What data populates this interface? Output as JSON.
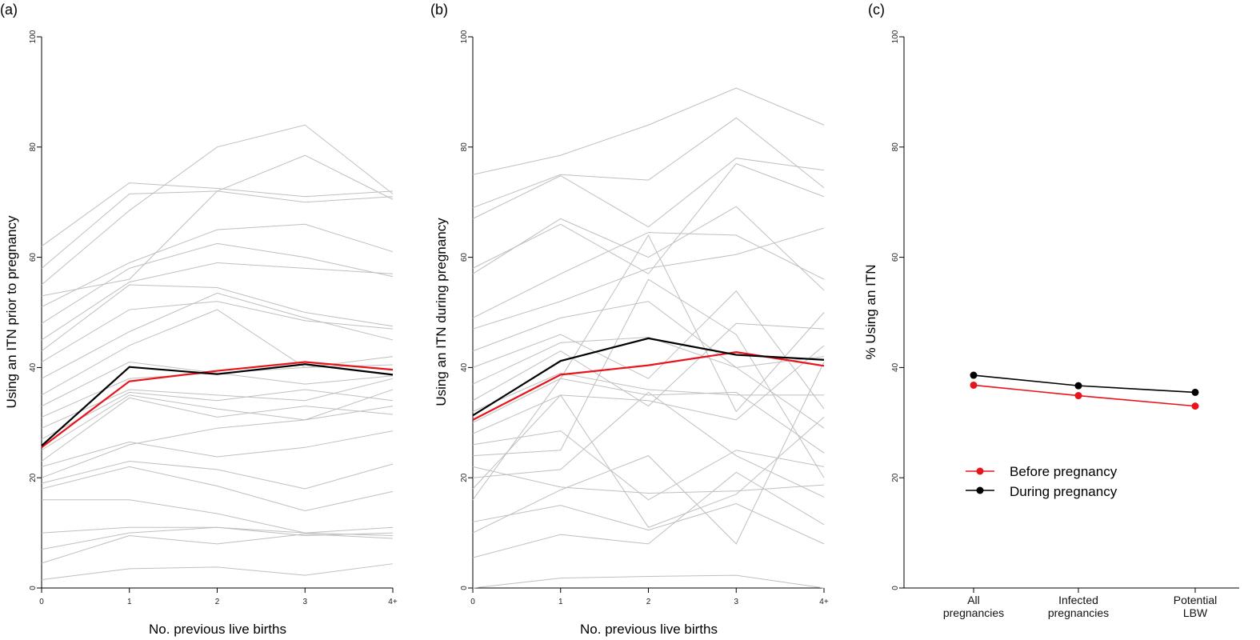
{
  "chart_data": [
    {
      "panel_label": "(a)",
      "type": "line",
      "xlabel": "No. previous live births",
      "ylabel": "Using an ITN prior to pregnancy",
      "x": [
        "0",
        "1",
        "2",
        "3",
        "4+"
      ],
      "ylim": [
        0,
        100
      ],
      "yticks": [
        "0",
        "20",
        "40",
        "60",
        "80",
        "100"
      ],
      "grid": false,
      "background_colors": {
        "background": "#bfbfbf"
      },
      "background_series": [
        [
          62,
          73.5,
          72.5,
          71,
          72
        ],
        [
          58,
          71.5,
          72,
          70,
          71
        ],
        [
          55,
          68.5,
          80,
          84,
          71.5
        ],
        [
          53,
          56,
          72,
          78.5,
          70.5
        ],
        [
          51,
          59,
          65,
          66,
          61
        ],
        [
          48,
          58,
          62.5,
          60,
          56.5
        ],
        [
          45,
          55.5,
          59,
          58,
          57
        ],
        [
          43,
          55,
          54.5,
          50,
          47.5
        ],
        [
          41,
          50.5,
          52,
          48.5,
          47
        ],
        [
          38,
          46.5,
          53.5,
          49,
          45
        ],
        [
          35,
          44,
          50.5,
          40,
          42
        ],
        [
          33,
          41,
          39,
          40,
          40.5
        ],
        [
          31,
          38,
          39,
          37,
          38.5
        ],
        [
          29,
          36,
          35,
          34,
          38
        ],
        [
          27,
          35.5,
          34,
          36,
          34
        ],
        [
          25,
          35,
          32.5,
          30.5,
          36
        ],
        [
          23,
          34.5,
          31,
          33,
          31.5
        ],
        [
          22,
          26.5,
          23.8,
          25.5,
          28.5
        ],
        [
          20,
          26,
          29,
          30.5,
          33
        ],
        [
          19,
          23,
          21.5,
          18,
          22.5
        ],
        [
          18,
          22,
          18.5,
          14,
          17.5
        ],
        [
          16,
          16,
          13.5,
          10,
          11
        ],
        [
          10,
          11,
          11,
          9.5,
          10
        ],
        [
          7,
          10,
          11,
          10,
          9.5
        ],
        [
          4.5,
          9.5,
          8,
          9.8,
          9
        ],
        [
          1.5,
          3.5,
          3.8,
          2.3,
          4.4
        ]
      ],
      "series": [
        {
          "color": "#e8141b",
          "values": [
            25.5,
            37.5,
            39.4,
            41,
            39.6
          ]
        },
        {
          "color": "#000000",
          "values": [
            25.8,
            40.1,
            38.8,
            40.6,
            38.7
          ]
        }
      ]
    },
    {
      "panel_label": "(b)",
      "type": "line",
      "xlabel": "No. previous live births",
      "ylabel": "Using an ITN during pregnancy",
      "x": [
        "0",
        "1",
        "2",
        "3",
        "4+"
      ],
      "ylim": [
        0,
        100
      ],
      "yticks": [
        "0",
        "20",
        "40",
        "60",
        "80",
        "100"
      ],
      "grid": false,
      "background_colors": {
        "background": "#bfbfbf"
      },
      "background_series": [
        [
          75,
          78.5,
          84,
          90.7,
          84
        ],
        [
          69,
          75,
          74,
          85.3,
          72.6
        ],
        [
          67,
          74.8,
          65.5,
          78,
          75.8
        ],
        [
          58,
          66,
          57,
          77,
          71
        ],
        [
          57,
          67,
          60,
          69.2,
          54
        ],
        [
          49,
          57,
          64.5,
          64,
          56
        ],
        [
          47,
          52,
          58,
          60.5,
          65.3
        ],
        [
          43,
          49,
          52,
          40,
          42
        ],
        [
          40,
          46,
          38,
          53.9,
          32.5
        ],
        [
          37,
          44.5,
          45.5,
          40,
          29
        ],
        [
          34,
          43,
          33,
          48,
          47
        ],
        [
          32,
          39,
          36,
          35,
          35
        ],
        [
          30,
          38,
          35,
          35.5,
          24.5
        ],
        [
          28,
          35,
          34,
          30.5,
          44
        ],
        [
          26,
          28.5,
          16,
          25,
          22
        ],
        [
          24,
          25,
          56,
          46,
          20
        ],
        [
          22,
          18.3,
          17.2,
          17.6,
          18.7
        ],
        [
          20,
          21.5,
          35.5,
          24,
          16.5
        ],
        [
          18,
          35,
          11,
          17,
          31
        ],
        [
          16,
          38,
          64,
          32,
          50
        ],
        [
          12,
          15,
          10.5,
          15.3,
          8
        ],
        [
          10,
          17.8,
          24,
          8,
          41
        ],
        [
          5.5,
          9.7,
          8,
          21,
          11.5
        ],
        [
          0,
          1.8,
          2.1,
          2.3,
          0
        ]
      ],
      "series": [
        {
          "color": "#e8141b",
          "values": [
            30.5,
            38.7,
            40.4,
            42.8,
            40.3
          ]
        },
        {
          "color": "#000000",
          "values": [
            31.3,
            41.2,
            45.3,
            42.3,
            41.4
          ]
        }
      ]
    },
    {
      "panel_label": "(c)",
      "type": "line",
      "xlabel": "",
      "ylabel": "% Using an ITN",
      "categories": [
        [
          "All",
          "pregnancies"
        ],
        [
          "Infected",
          "pregnancies"
        ],
        [
          "Potential",
          "LBW"
        ]
      ],
      "ylim": [
        0,
        100
      ],
      "yticks": [
        "0",
        "20",
        "40",
        "60",
        "80",
        "100"
      ],
      "grid": false,
      "legend_position": "center-left",
      "series": [
        {
          "name": "Before pregnancy",
          "color": "#e8141b",
          "values": [
            36.8,
            34.9,
            33.0
          ]
        },
        {
          "name": "During pregnancy",
          "color": "#000000",
          "values": [
            38.6,
            36.7,
            35.5
          ]
        }
      ]
    }
  ]
}
